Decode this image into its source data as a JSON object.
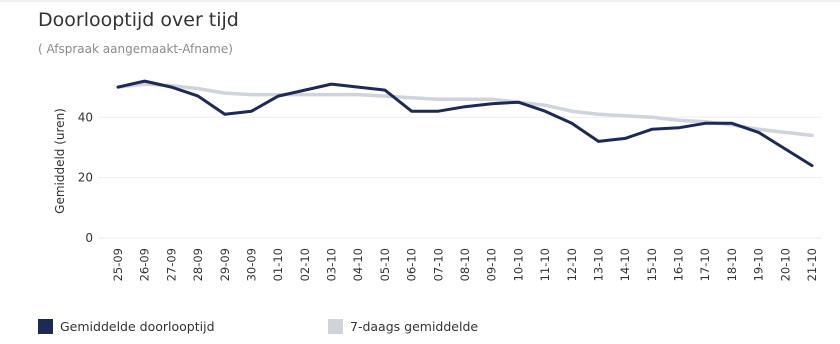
{
  "colors": {
    "primary": "#1b2a57",
    "moving_average": "#cfd3dc",
    "grid": "#eeeeee",
    "text": "#333333",
    "muted": "#8a8a8a"
  },
  "chart_data": {
    "type": "line",
    "title": "Doorlooptijd over tijd",
    "subtitle": "( Afspraak aangemaakt-Afname)",
    "xlabel": "",
    "ylabel": "Gemiddeld (uren)",
    "ylim": [
      0,
      55
    ],
    "yticks": [
      0,
      20,
      40
    ],
    "grid": true,
    "legend_position": "bottom-left",
    "categories": [
      "25-09",
      "26-09",
      "27-09",
      "28-09",
      "29-09",
      "30-09",
      "01-10",
      "02-10",
      "03-10",
      "04-10",
      "05-10",
      "06-10",
      "07-10",
      "08-10",
      "09-10",
      "10-10",
      "11-10",
      "12-10",
      "13-10",
      "14-10",
      "15-10",
      "16-10",
      "17-10",
      "18-10",
      "19-10",
      "20-10",
      "21-10"
    ],
    "series": [
      {
        "name": "Gemiddelde doorlooptijd",
        "values": [
          50,
          52,
          50,
          47,
          41,
          42,
          47,
          49,
          51,
          50,
          49,
          42,
          42,
          43.5,
          44.5,
          45,
          42,
          38,
          32,
          33,
          36,
          36.5,
          38,
          38,
          35,
          29.5,
          24
        ]
      },
      {
        "name": "7-daags gemiddelde",
        "values": [
          50,
          51,
          50.5,
          49.5,
          48,
          47.5,
          47.5,
          47.5,
          47.5,
          47.5,
          47,
          46.5,
          46,
          46,
          46,
          45,
          44,
          42,
          41,
          40.5,
          40,
          39,
          38.5,
          37.5,
          36,
          35,
          34
        ]
      }
    ]
  }
}
